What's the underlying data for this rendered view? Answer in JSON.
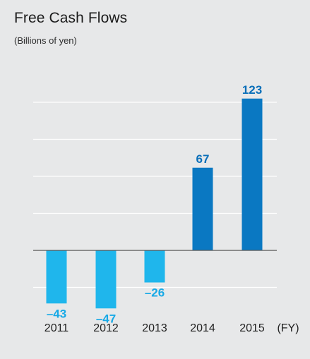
{
  "chart_data": {
    "type": "bar",
    "title": "Free Cash Flows",
    "subtitle": "(Billions of yen)",
    "categories": [
      "2011",
      "2012",
      "2013",
      "2014",
      "2015"
    ],
    "x_unit_label": "(FY)",
    "values": [
      -43,
      -47,
      -26,
      67,
      123
    ],
    "value_labels": [
      "–43",
      "–47",
      "–26",
      "67",
      "123"
    ],
    "ylim": [
      -60,
      120
    ],
    "grid": true,
    "colors": {
      "negative": "#1fb6ec",
      "positive": "#0a78c2",
      "negative_label": "#17a9e6",
      "positive_label": "#0a6fb9",
      "grid": "#ffffff",
      "zero_line": "#555555",
      "background": "#e7e8e9"
    }
  }
}
